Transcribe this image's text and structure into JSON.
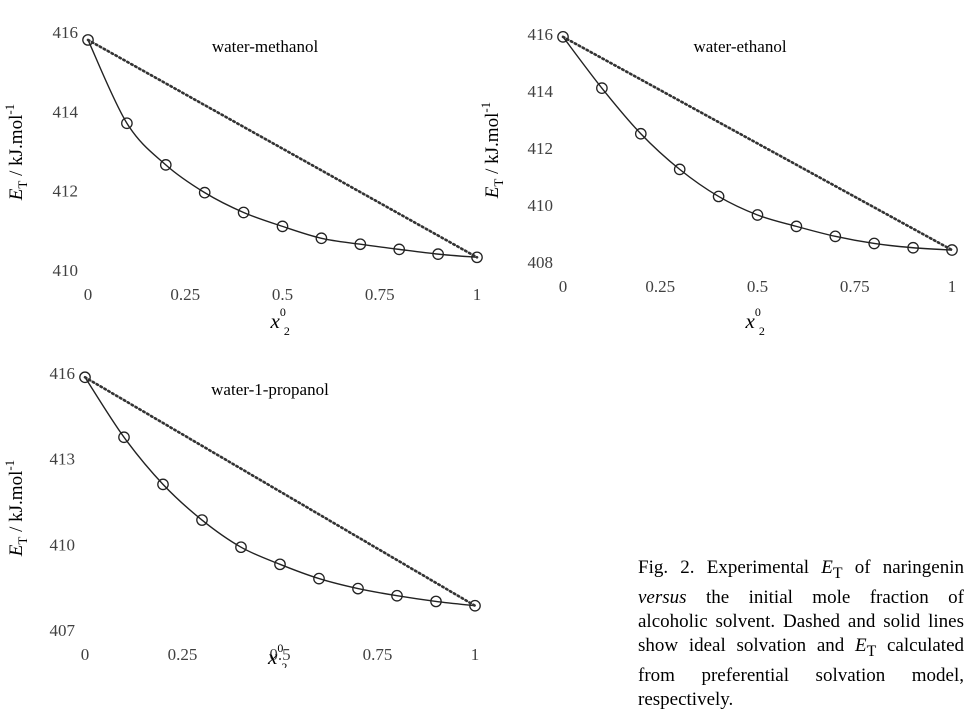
{
  "chart_data": [
    {
      "type": "line",
      "title": "water-methanol",
      "xlabel": "x⁰₂",
      "ylabel": "E_T / kJ.mol⁻¹",
      "xlim": [
        0,
        1
      ],
      "ylim": [
        410,
        416
      ],
      "xticks": [
        "0",
        "0.25",
        "0.5",
        "0.75",
        "1"
      ],
      "yticks": [
        "410",
        "412",
        "414",
        "416"
      ],
      "series": [
        {
          "style": "solid-with-circles",
          "x": [
            0,
            0.1,
            0.2,
            0.3,
            0.4,
            0.5,
            0.6,
            0.7,
            0.8,
            0.9,
            1
          ],
          "y": [
            415.8,
            413.7,
            412.65,
            411.95,
            411.45,
            411.1,
            410.8,
            410.65,
            410.52,
            410.4,
            410.32
          ]
        },
        {
          "style": "dotted",
          "x": [
            0,
            1
          ],
          "y": [
            415.8,
            410.32
          ]
        }
      ]
    },
    {
      "type": "line",
      "title": "water-ethanol",
      "xlabel": "x⁰₂",
      "ylabel": "E_T / kJ.mol⁻¹",
      "xlim": [
        0,
        1
      ],
      "ylim": [
        408,
        416
      ],
      "xticks": [
        "0",
        "0.25",
        "0.5",
        "0.75",
        "1"
      ],
      "yticks": [
        "408",
        "410",
        "412",
        "414",
        "416"
      ],
      "series": [
        {
          "style": "solid-with-circles",
          "x": [
            0,
            0.1,
            0.2,
            0.3,
            0.4,
            0.5,
            0.6,
            0.7,
            0.8,
            0.9,
            1
          ],
          "y": [
            415.9,
            414.1,
            412.5,
            411.25,
            410.3,
            409.65,
            409.25,
            408.9,
            408.65,
            408.5,
            408.42
          ]
        },
        {
          "style": "dotted",
          "x": [
            0,
            1
          ],
          "y": [
            415.9,
            408.42
          ]
        }
      ]
    },
    {
      "type": "line",
      "title": "water-1-propanol",
      "xlabel": "x⁰₂",
      "ylabel": "E_T / kJ.mol⁻¹",
      "xlim": [
        0,
        1
      ],
      "ylim": [
        407,
        416
      ],
      "xticks": [
        "0",
        "0.25",
        "0.5",
        "0.75",
        "1"
      ],
      "yticks": [
        "407",
        "410",
        "413",
        "416"
      ],
      "series": [
        {
          "style": "solid-with-circles",
          "x": [
            0,
            0.1,
            0.2,
            0.3,
            0.4,
            0.5,
            0.6,
            0.7,
            0.8,
            0.9,
            1
          ],
          "y": [
            415.85,
            413.75,
            412.1,
            410.85,
            409.9,
            409.3,
            408.8,
            408.45,
            408.2,
            408.0,
            407.85
          ]
        },
        {
          "style": "dotted",
          "x": [
            0,
            1
          ],
          "y": [
            415.85,
            407.85
          ]
        }
      ]
    }
  ],
  "caption": {
    "label": "Fig. 2.",
    "part1": " Experimental ",
    "et_main": "E",
    "et_sub": "T",
    "part2": " of naringenin ",
    "versus": "versus",
    "part3": " the initial mole fraction of alcoholic solvent. Dashed and solid lines show ideal solvation and ",
    "part4": " calculated from preferential solvation model, respectively."
  }
}
